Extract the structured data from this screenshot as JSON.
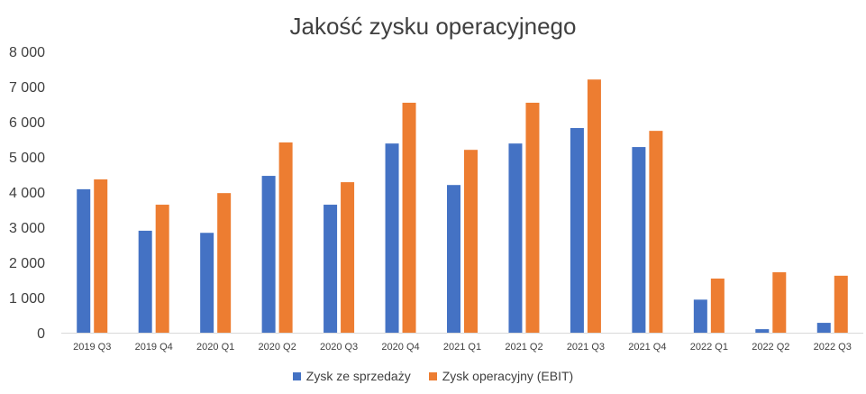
{
  "chart_data": {
    "type": "bar",
    "title": "Jakość zysku operacyjnego",
    "xlabel": "",
    "ylabel": "",
    "ylim": [
      0,
      8000
    ],
    "yticks": [
      0,
      1000,
      2000,
      3000,
      4000,
      5000,
      6000,
      7000,
      8000
    ],
    "ytick_labels": [
      "0",
      "1 000",
      "2 000",
      "3 000",
      "4 000",
      "5 000",
      "6 000",
      "7 000",
      "8 000"
    ],
    "grid": false,
    "legend_position": "bottom",
    "categories": [
      "2019 Q3",
      "2019 Q4",
      "2020 Q1",
      "2020 Q2",
      "2020 Q3",
      "2020 Q4",
      "2021 Q1",
      "2021 Q2",
      "2021 Q3",
      "2021 Q4",
      "2022 Q1",
      "2022 Q2",
      "2022 Q3"
    ],
    "series": [
      {
        "name": "Zysk ze sprzedaży",
        "color": "#4472c4",
        "values": [
          4080,
          2900,
          2840,
          4460,
          3640,
          5380,
          4200,
          5380,
          5820,
          5280,
          940,
          100,
          280
        ]
      },
      {
        "name": "Zysk operacyjny (EBIT)",
        "color": "#ed7d31",
        "values": [
          4360,
          3640,
          3970,
          5410,
          4280,
          6540,
          5200,
          6540,
          7200,
          5740,
          1540,
          1720,
          1620
        ]
      }
    ]
  }
}
